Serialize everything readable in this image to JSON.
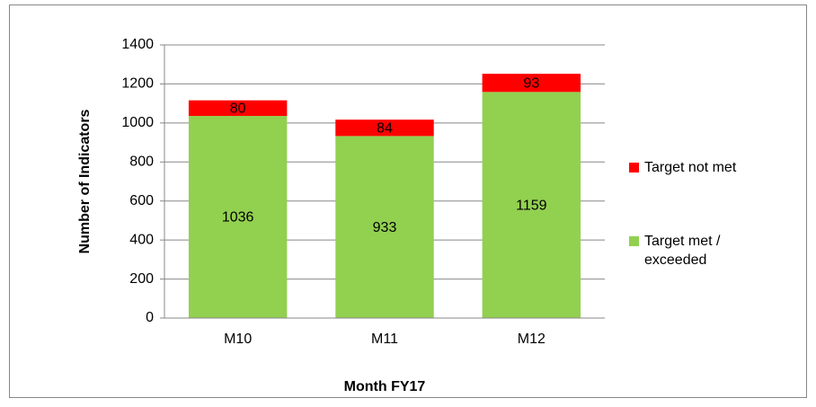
{
  "chart_data": {
    "type": "stacked_bar",
    "x_label": "Month FY17",
    "y_label": "Number of Indicators",
    "categories": [
      "M10",
      "M11",
      "M12"
    ],
    "series": [
      {
        "name": "Target met / exceeded",
        "color": "#92d050",
        "values": [
          1036,
          933,
          1159
        ]
      },
      {
        "name": "Target not met",
        "color": "#ff0000",
        "values": [
          80,
          84,
          93
        ]
      }
    ],
    "ylim": [
      0,
      1400
    ],
    "yticks": [
      0,
      200,
      400,
      600,
      800,
      1000,
      1200,
      1400
    ],
    "grid": true,
    "legend": "right"
  }
}
